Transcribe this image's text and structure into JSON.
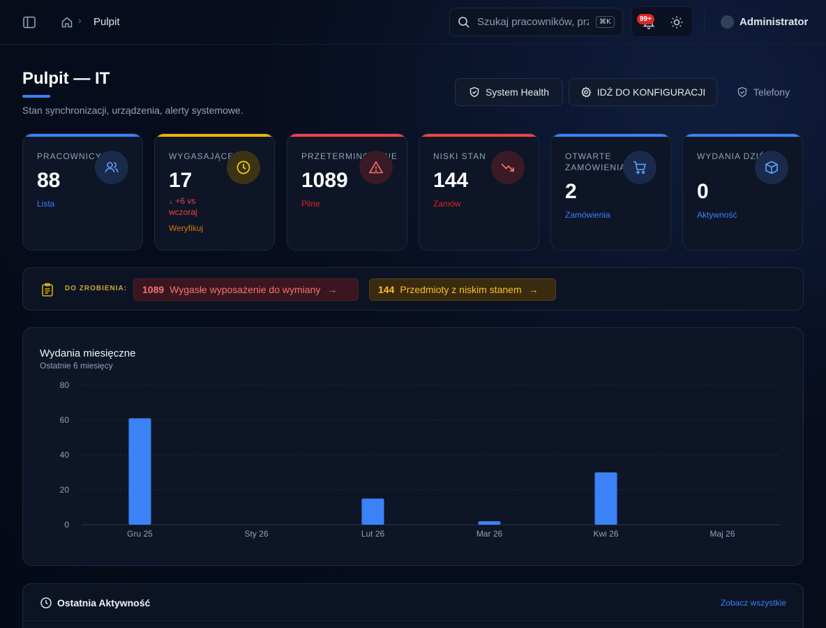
{
  "topbar": {
    "breadcrumb_current": "Pulpit",
    "breadcrumb_sep": "›",
    "search_placeholder": "Szukaj pracowników, prz",
    "search_shortcut": "⌘K",
    "notifications_badge": "99+",
    "user_name": "Administrator"
  },
  "header": {
    "title": "Pulpit — IT",
    "subtitle": "Stan synchronizacji, urządzenia, alerty systemowe.",
    "btn_health": "System Health",
    "btn_config": "IDŹ DO KONFIGURACJI",
    "btn_phones": "Telefony"
  },
  "cards": [
    {
      "label": "PRACOWNICY",
      "value": "88",
      "link": "Lista",
      "accent": "#3b82f6",
      "icon": "users-icon"
    },
    {
      "label": "WYGASAJĄCE",
      "value": "17",
      "trend": "↓ +6 vs wczoraj",
      "link": "Weryfikuj",
      "accent": "#eab308",
      "icon": "clock-icon"
    },
    {
      "label": "PRZETERMINOWANE",
      "value": "1089",
      "link": "Pilne",
      "accent": "#ef4444",
      "icon": "alert-triangle-icon"
    },
    {
      "label": "NISKI STAN",
      "value": "144",
      "link": "Zamów",
      "accent": "#ef4444",
      "icon": "trending-down-icon"
    },
    {
      "label": "OTWARTE ZAMÓWIENIA",
      "value": "2",
      "link": "Zamówienia",
      "accent": "#3b82f6",
      "icon": "cart-icon"
    },
    {
      "label": "WYDANIA DZIŚ",
      "value": "0",
      "link": "Aktywność",
      "accent": "#3b82f6",
      "icon": "package-icon"
    }
  ],
  "todo": {
    "label": "DO ZROBIENIA:",
    "items": [
      {
        "count": "1089",
        "text": "Wygasłe wyposażenie do wymiany",
        "arrow": "→"
      },
      {
        "count": "144",
        "text": "Przedmioty z niskim stanem",
        "arrow": "→"
      }
    ]
  },
  "chart": {
    "title": "Wydania miesięczne",
    "subtitle": "Ostatnie 6 miesięcy"
  },
  "chart_data": {
    "type": "bar",
    "categories": [
      "Gru 25",
      "Sty 26",
      "Lut 26",
      "Mar 26",
      "Kwi 26",
      "Maj 26"
    ],
    "values": [
      61,
      0,
      15,
      2,
      30,
      0
    ],
    "yticks": [
      0,
      20,
      40,
      60,
      80
    ],
    "ylim": [
      0,
      80
    ],
    "bar_color": "#3b82f6",
    "grid": "horizontal dashed"
  },
  "activity": {
    "title": "Ostatnia Aktywność",
    "link": "Zobacz wszystkie"
  }
}
